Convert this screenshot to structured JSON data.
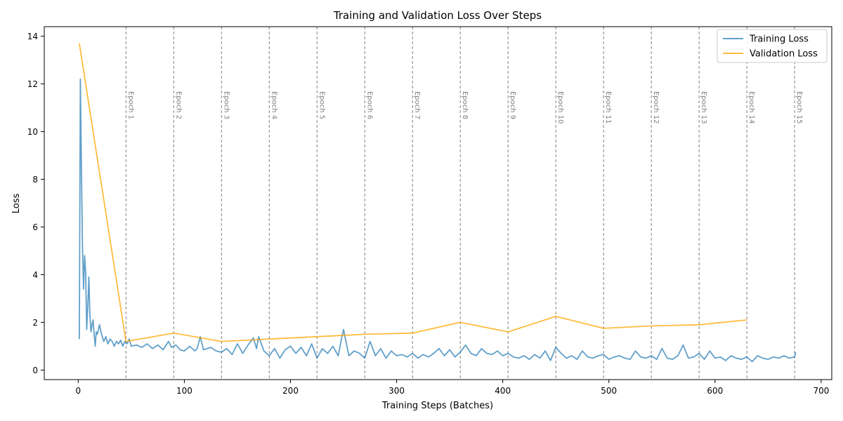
{
  "chart_data": {
    "type": "line",
    "title": "Training and Validation Loss Over Steps",
    "xlabel": "Training Steps (Batches)",
    "ylabel": "Loss",
    "xlim": [
      -32,
      710
    ],
    "ylim": [
      -0.4,
      14.4
    ],
    "xticks": [
      0,
      100,
      200,
      300,
      400,
      500,
      600,
      700
    ],
    "yticks": [
      0,
      2,
      4,
      6,
      8,
      10,
      12,
      14
    ],
    "grid": false,
    "legend": "top-right",
    "epoch_markers": [
      {
        "x": 45,
        "label": "Epoch 1"
      },
      {
        "x": 90,
        "label": "Epoch 2"
      },
      {
        "x": 135,
        "label": "Epoch 3"
      },
      {
        "x": 180,
        "label": "Epoch 4"
      },
      {
        "x": 225,
        "label": "Epoch 5"
      },
      {
        "x": 270,
        "label": "Epoch 6"
      },
      {
        "x": 315,
        "label": "Epoch 7"
      },
      {
        "x": 360,
        "label": "Epoch 8"
      },
      {
        "x": 405,
        "label": "Epoch 9"
      },
      {
        "x": 450,
        "label": "Epoch 10"
      },
      {
        "x": 495,
        "label": "Epoch 11"
      },
      {
        "x": 540,
        "label": "Epoch 12"
      },
      {
        "x": 585,
        "label": "Epoch 13"
      },
      {
        "x": 630,
        "label": "Epoch 14"
      },
      {
        "x": 675,
        "label": "Epoch 15"
      }
    ],
    "series": [
      {
        "name": "Training Loss",
        "color": "#1f77b4",
        "x": [
          1,
          2,
          3,
          4,
          5,
          6,
          7,
          8,
          9,
          10,
          11,
          12,
          13,
          14,
          15,
          16,
          17,
          18,
          20,
          22,
          24,
          26,
          28,
          30,
          32,
          34,
          36,
          38,
          40,
          42,
          44,
          46,
          48,
          50,
          55,
          60,
          65,
          70,
          75,
          80,
          85,
          88,
          92,
          96,
          100,
          105,
          110,
          112,
          115,
          118,
          125,
          130,
          135,
          140,
          145,
          150,
          155,
          160,
          165,
          168,
          170,
          175,
          180,
          185,
          190,
          195,
          200,
          205,
          210,
          215,
          220,
          225,
          230,
          235,
          240,
          245,
          248,
          250,
          255,
          260,
          265,
          270,
          275,
          280,
          285,
          290,
          295,
          300,
          305,
          310,
          315,
          320,
          325,
          330,
          335,
          340,
          345,
          350,
          355,
          360,
          365,
          370,
          375,
          380,
          385,
          390,
          395,
          400,
          405,
          410,
          415,
          420,
          425,
          430,
          435,
          440,
          445,
          450,
          455,
          460,
          465,
          470,
          475,
          480,
          485,
          490,
          495,
          500,
          505,
          510,
          515,
          520,
          525,
          530,
          535,
          540,
          545,
          550,
          555,
          560,
          565,
          570,
          575,
          580,
          585,
          590,
          595,
          600,
          605,
          610,
          615,
          620,
          625,
          630,
          635,
          640,
          645,
          650,
          655,
          660,
          665,
          670,
          675,
          676
        ],
        "y": [
          1.3,
          12.2,
          8.5,
          5.2,
          3.4,
          4.8,
          4.1,
          1.7,
          2.6,
          3.9,
          2.3,
          1.6,
          1.9,
          2.1,
          1.5,
          1.0,
          1.6,
          1.5,
          1.9,
          1.5,
          1.2,
          1.4,
          1.1,
          1.3,
          1.2,
          1.0,
          1.2,
          1.1,
          1.25,
          1.0,
          1.2,
          1.1,
          1.3,
          1.0,
          1.05,
          0.95,
          1.1,
          0.9,
          1.05,
          0.85,
          1.2,
          0.95,
          1.05,
          0.85,
          0.8,
          1.0,
          0.8,
          0.9,
          1.4,
          0.85,
          0.95,
          0.8,
          0.75,
          0.9,
          0.65,
          1.1,
          0.7,
          1.05,
          1.35,
          0.9,
          1.4,
          0.8,
          0.6,
          0.9,
          0.5,
          0.85,
          1.0,
          0.7,
          0.95,
          0.6,
          1.1,
          0.5,
          0.9,
          0.7,
          1.0,
          0.6,
          1.3,
          1.7,
          0.6,
          0.8,
          0.7,
          0.5,
          1.2,
          0.6,
          0.9,
          0.5,
          0.8,
          0.6,
          0.65,
          0.55,
          0.7,
          0.5,
          0.65,
          0.55,
          0.7,
          0.9,
          0.6,
          0.85,
          0.55,
          0.75,
          1.05,
          0.7,
          0.6,
          0.9,
          0.7,
          0.65,
          0.8,
          0.6,
          0.7,
          0.55,
          0.5,
          0.6,
          0.45,
          0.65,
          0.5,
          0.8,
          0.4,
          0.95,
          0.7,
          0.5,
          0.6,
          0.45,
          0.8,
          0.55,
          0.5,
          0.6,
          0.65,
          0.45,
          0.55,
          0.6,
          0.5,
          0.45,
          0.8,
          0.55,
          0.5,
          0.6,
          0.45,
          0.9,
          0.5,
          0.45,
          0.6,
          1.05,
          0.5,
          0.55,
          0.7,
          0.45,
          0.8,
          0.5,
          0.55,
          0.4,
          0.6,
          0.5,
          0.45,
          0.55,
          0.35,
          0.6,
          0.5,
          0.45,
          0.55,
          0.5,
          0.6,
          0.5,
          0.55,
          0.75
        ]
      },
      {
        "name": "Validation Loss",
        "color": "#ffa500",
        "x": [
          1,
          45,
          90,
          135,
          180,
          225,
          270,
          315,
          360,
          405,
          450,
          495,
          540,
          585,
          630
        ],
        "y": [
          13.7,
          1.2,
          1.55,
          1.2,
          1.3,
          1.4,
          1.5,
          1.55,
          2.0,
          1.6,
          2.25,
          1.75,
          1.85,
          1.9,
          2.1
        ]
      }
    ]
  }
}
